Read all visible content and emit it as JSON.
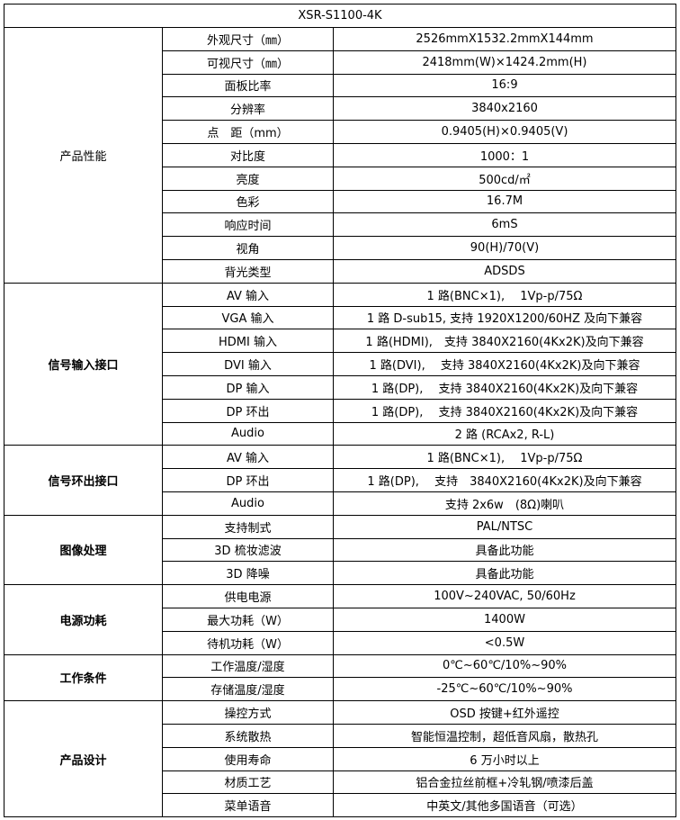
{
  "table": {
    "title": "XSR-S1100-4K",
    "groups": [
      {
        "label": "产品性能",
        "rows": [
          [
            "外观尺寸（㎜）",
            "2526mmX1532.2mmX144mm"
          ],
          [
            "可视尺寸（㎜）",
            "2418mm(W)×1424.2mm(H)"
          ],
          [
            "面板比率",
            "16:9"
          ],
          [
            "分辨率",
            "3840x2160"
          ],
          [
            "点　距（mm）",
            "0.9405(H)×0.9405(V)"
          ],
          [
            "对比度",
            "1000：1"
          ],
          [
            "亮度",
            "500cd/㎡"
          ],
          [
            "色彩",
            "16.7M"
          ],
          [
            "响应时间",
            "6mS"
          ],
          [
            "视角",
            "90(H)/70(V)"
          ],
          [
            "背光类型",
            "ADSDS"
          ]
        ]
      },
      {
        "label": "信号输入接口",
        "rows": [
          [
            "AV 输入",
            "1 路(BNC×1),　 1Vp-p/75Ω"
          ],
          [
            "VGA 输入",
            "1 路 D-sub15, 支持 1920X1200/60HZ 及向下兼容"
          ],
          [
            "HDMI 输入",
            "1 路(HDMI),　支持 3840X2160(4Kx2K)及向下兼容"
          ],
          [
            "DVI 输入",
            "1 路(DVI),　 支持 3840X2160(4Kx2K)及向下兼容"
          ],
          [
            "DP 输入",
            "1 路(DP),　 支持 3840X2160(4Kx2K)及向下兼容"
          ],
          [
            "DP 环出",
            "1 路(DP),　 支持 3840X2160(4Kx2K)及向下兼容"
          ],
          [
            "Audio",
            "2 路 (RCAx2, R-L)"
          ]
        ]
      },
      {
        "label": "信号环出接口",
        "rows": [
          [
            "AV 输入",
            "1 路(BNC×1),　 1Vp-p/75Ω"
          ],
          [
            "DP 环出",
            "1 路(DP),　 支持　3840X2160(4Kx2K)及向下兼容"
          ],
          [
            "Audio",
            "支持 2x6w　(8Ω)喇叭"
          ]
        ]
      },
      {
        "label": "图像处理",
        "rows": [
          [
            "支持制式",
            "PAL/NTSC"
          ],
          [
            "3D 梳妆滤波",
            "具备此功能"
          ],
          [
            "3D 降噪",
            "具备此功能"
          ]
        ]
      },
      {
        "label": "电源功耗",
        "rows": [
          [
            "供电电源",
            "100V~240VAC, 50/60Hz"
          ],
          [
            "最大功耗（W）",
            "1400W"
          ],
          [
            "待机功耗（W）",
            "<0.5W"
          ]
        ]
      },
      {
        "label": "工作条件",
        "rows": [
          [
            "工作温度/湿度",
            "0℃~60℃/10%~90%"
          ],
          [
            "存储温度/湿度",
            "-25℃~60℃/10%~90%"
          ]
        ]
      },
      {
        "label": "产品设计",
        "rows": [
          [
            "操控方式",
            "OSD 按键+红外遥控"
          ],
          [
            "系统散热",
            "智能恒温控制，超低音风扇，散热孔"
          ],
          [
            "使用寿命",
            "6 万小时以上"
          ],
          [
            "材质工艺",
            "铝合金拉丝前框+冷轧钢/喷漆后盖"
          ],
          [
            "菜单语音",
            "中英文/其他多国语音（可选）"
          ]
        ]
      }
    ]
  }
}
